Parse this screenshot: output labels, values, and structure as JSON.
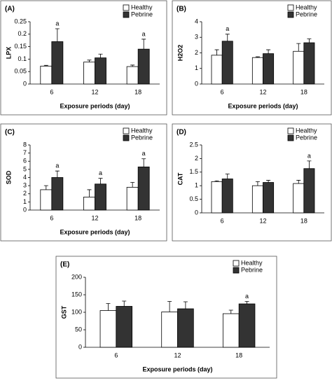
{
  "chart_data": [
    {
      "type": "bar",
      "label": "(A)",
      "ylabel": "LPX",
      "xlabel": "Exposure periods (day)",
      "categories": [
        "6",
        "12",
        "18"
      ],
      "series": [
        {
          "name": "Healthy",
          "color": "#ffffff",
          "values": [
            0.072,
            0.088,
            0.07
          ],
          "errors": [
            0.003,
            0.008,
            0.006
          ]
        },
        {
          "name": "Pebrine",
          "color": "#333333",
          "values": [
            0.17,
            0.105,
            0.14
          ],
          "errors": [
            0.052,
            0.015,
            0.04
          ],
          "annotations": [
            "a",
            null,
            "a"
          ]
        }
      ],
      "ylim": [
        0,
        0.25
      ],
      "yticks": [
        0,
        0.05,
        0.1,
        0.15,
        0.2,
        0.25
      ]
    },
    {
      "type": "bar",
      "label": "(B)",
      "ylabel": "H2O2",
      "xlabel": "Exposure periods (day)",
      "categories": [
        "6",
        "12",
        "18"
      ],
      "series": [
        {
          "name": "Healthy",
          "color": "#ffffff",
          "values": [
            1.85,
            1.7,
            2.1
          ],
          "errors": [
            0.35,
            0.05,
            0.5
          ]
        },
        {
          "name": "Pebrine",
          "color": "#333333",
          "values": [
            2.75,
            1.95,
            2.65
          ],
          "errors": [
            0.45,
            0.25,
            0.25
          ],
          "annotations": [
            "a",
            null,
            null
          ]
        }
      ],
      "ylim": [
        0,
        4
      ],
      "yticks": [
        0,
        1,
        2,
        3,
        4
      ]
    },
    {
      "type": "bar",
      "label": "(C)",
      "ylabel": "SOD",
      "xlabel": "Exposure periods (day)",
      "categories": [
        "6",
        "12",
        "18"
      ],
      "series": [
        {
          "name": "Healthy",
          "color": "#ffffff",
          "values": [
            2.5,
            1.6,
            2.8
          ],
          "errors": [
            0.5,
            0.9,
            0.6
          ]
        },
        {
          "name": "Pebrine",
          "color": "#333333",
          "values": [
            4.0,
            3.2,
            5.3
          ],
          "errors": [
            0.8,
            0.7,
            1.0
          ],
          "annotations": [
            "a",
            "a",
            "a"
          ]
        }
      ],
      "ylim": [
        0,
        8
      ],
      "yticks": [
        0,
        1,
        2,
        3,
        4,
        5,
        6,
        7,
        8
      ]
    },
    {
      "type": "bar",
      "label": "(D)",
      "ylabel": "CAT",
      "categories": [
        "6",
        "12",
        "18"
      ],
      "series": [
        {
          "name": "Healthy",
          "color": "#ffffff",
          "values": [
            1.15,
            1.0,
            1.08
          ],
          "errors": [
            0.03,
            0.15,
            0.12
          ]
        },
        {
          "name": "Pebrine",
          "color": "#333333",
          "values": [
            1.25,
            1.12,
            1.63
          ],
          "errors": [
            0.18,
            0.08,
            0.28
          ],
          "annotations": [
            null,
            null,
            "a"
          ]
        }
      ],
      "ylim": [
        0,
        2.5
      ],
      "yticks": [
        0,
        0.5,
        1,
        1.5,
        2,
        2.5
      ]
    },
    {
      "type": "bar",
      "label": "(E)",
      "ylabel": "GST",
      "xlabel": "Exposure periods (day)",
      "categories": [
        "6",
        "12",
        "18"
      ],
      "series": [
        {
          "name": "Healthy",
          "color": "#ffffff",
          "values": [
            105,
            101,
            96
          ],
          "errors": [
            20,
            30,
            10
          ]
        },
        {
          "name": "Pebrine",
          "color": "#333333",
          "values": [
            117,
            110,
            124
          ],
          "errors": [
            15,
            20,
            7
          ],
          "annotations": [
            null,
            null,
            "a"
          ]
        }
      ],
      "ylim": [
        0,
        200
      ],
      "yticks": [
        0,
        50,
        100,
        150,
        200
      ]
    }
  ]
}
